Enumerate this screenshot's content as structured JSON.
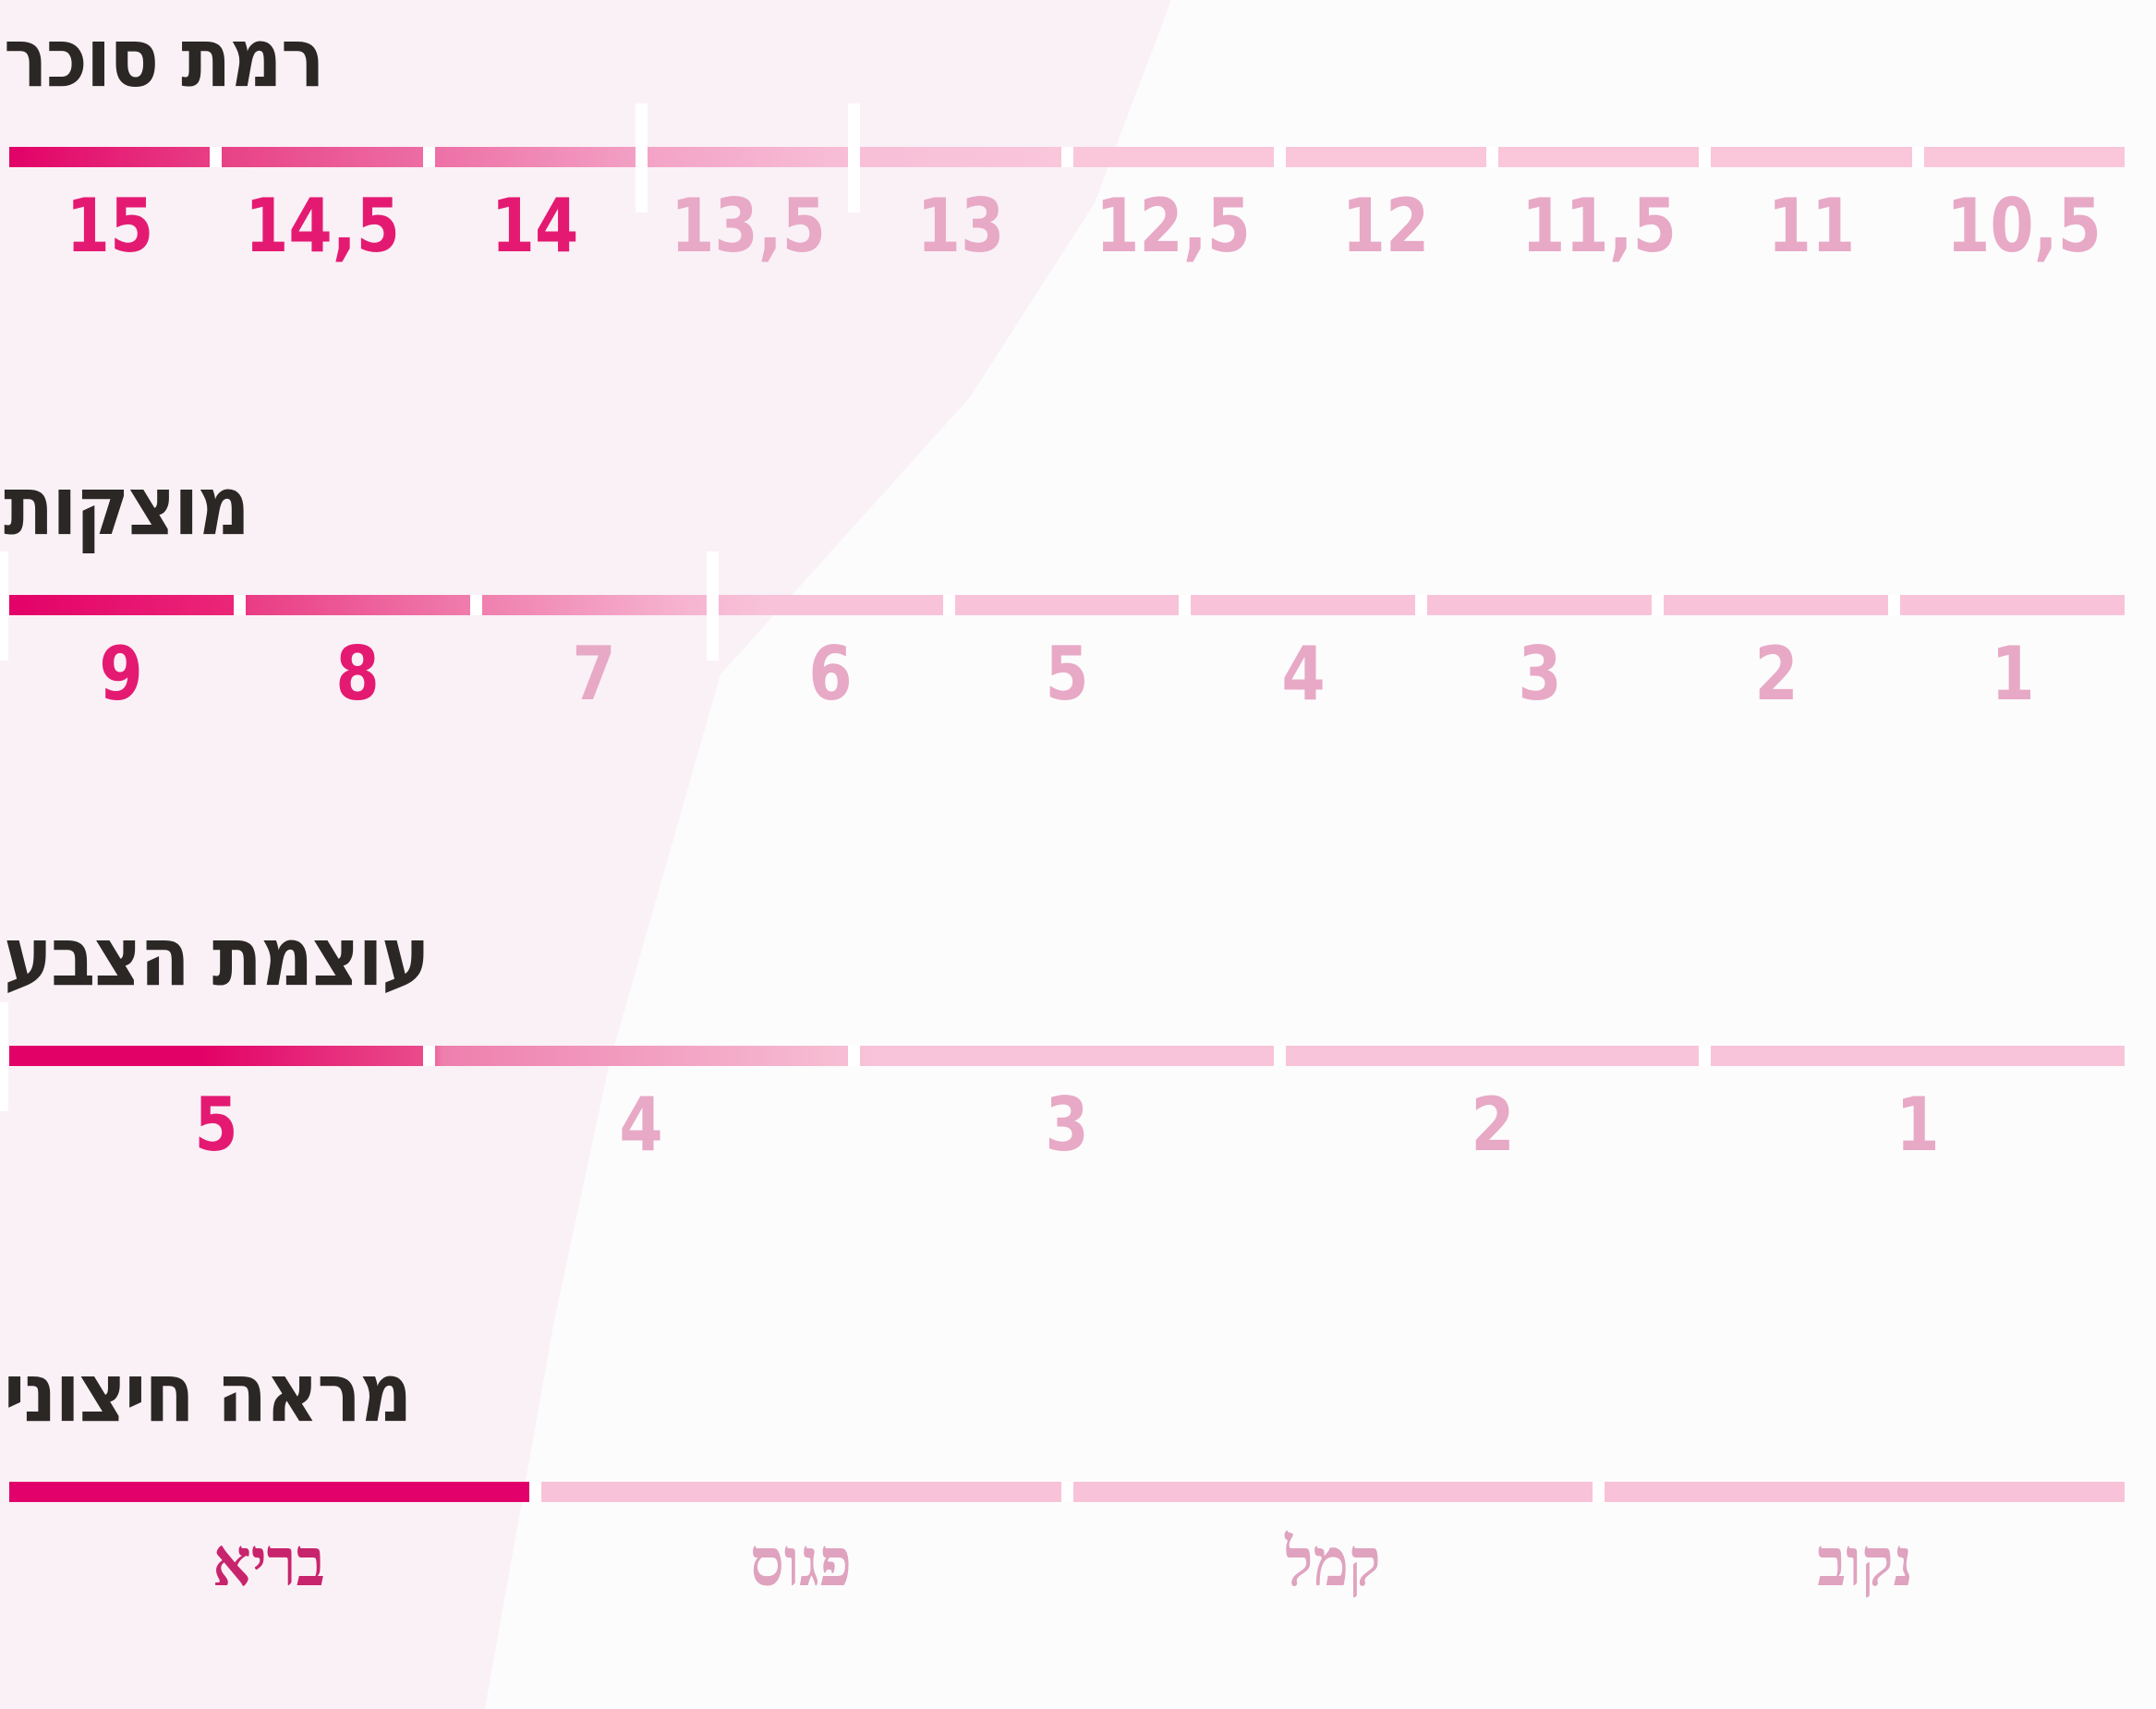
{
  "colors": {
    "background_right": "#fdfcfd",
    "background_left_wedge": "#faf1f6",
    "title_text": "#2b2725",
    "value_strong": "#e41a72",
    "value_muted": "#e7a9c6",
    "label_strong": "#c8246d",
    "label_muted": "#dfa3bf",
    "bar_deep": "#e20167",
    "bar_light": "#f9c6da",
    "gap_white": "#ffffff"
  },
  "rows": [
    {
      "name": "sugar-level",
      "title": "רמת סוכר",
      "values": [
        "15",
        "14,5",
        "14",
        "13,5",
        "13",
        "12,5",
        "12",
        "11,5",
        "11",
        "10,5"
      ],
      "strong_count": 3,
      "ticks": [
        3,
        4
      ],
      "serif_labels": false,
      "bar_gradient": "linear-gradient(90deg,#e20167 0%,#e84186 10%,#ed6fa5 20%,#f3a2c6 30%,#f8bfd7 40%,#f9c6da 50%,#f9c6da 100%)"
    },
    {
      "name": "firmness",
      "title": "מוצקות",
      "values": [
        "9",
        "8",
        "7",
        "6",
        "5",
        "4",
        "3",
        "2",
        "1"
      ],
      "strong_count": 2,
      "ticks": [
        0,
        3
      ],
      "serif_labels": false,
      "bar_gradient": "linear-gradient(90deg,#e30168 0%,#eb2678 10.6%,#ea3d85 11.4%,#ef78aa 21%,#f6b4d0 32%,#f8c3d9 36%,#f8c3d9 100%)"
    },
    {
      "name": "color-intensity",
      "title": "עוצמת הצבע",
      "values": [
        "5",
        "4",
        "3",
        "2",
        "1"
      ],
      "strong_count": 1,
      "ticks": [
        0
      ],
      "serif_labels": false,
      "bar_gradient": "linear-gradient(90deg,#e20167 0%,#e20167 9%,#ea4c8c 19.7%,#ee7fae 20.5%,#f6bcd2 39%,#f8c4d9 41%,#f8c4d9 100%)"
    },
    {
      "name": "external-appearance",
      "title": "מראה חיצוני",
      "values": [
        "בריא",
        "פגוס",
        "קמל",
        "נקוב"
      ],
      "strong_count": 1,
      "ticks": [],
      "serif_labels": true,
      "bar_gradient": "linear-gradient(90deg,#e2016b 0%,#e2016b 25.1%,#f8c3d8 25.1%,#f8c3d8 100%)"
    }
  ],
  "chart_data": [
    {
      "type": "bar",
      "title": "רמת סוכר",
      "categories": [
        "15",
        "14,5",
        "14",
        "13,5",
        "13",
        "12,5",
        "12",
        "11,5",
        "11",
        "10,5"
      ],
      "highlighted": [
        "15",
        "14,5",
        "14"
      ],
      "tick_marks_after_segment": [
        3,
        4
      ],
      "order": "descending-left-to-right",
      "legend_position": "none",
      "grid": false
    },
    {
      "type": "bar",
      "title": "מוצקות",
      "categories": [
        "9",
        "8",
        "7",
        "6",
        "5",
        "4",
        "3",
        "2",
        "1"
      ],
      "highlighted": [
        "9",
        "8"
      ],
      "tick_marks_after_segment": [
        0,
        3
      ],
      "order": "descending-left-to-right",
      "legend_position": "none",
      "grid": false
    },
    {
      "type": "bar",
      "title": "עוצמת הצבע",
      "categories": [
        "5",
        "4",
        "3",
        "2",
        "1"
      ],
      "highlighted": [
        "5"
      ],
      "tick_marks_after_segment": [
        0
      ],
      "order": "descending-left-to-right",
      "legend_position": "none",
      "grid": false
    },
    {
      "type": "bar",
      "title": "מראה חיצוני",
      "categories": [
        "בריא",
        "פגוס",
        "קמל",
        "נקוב"
      ],
      "highlighted": [
        "בריא"
      ],
      "tick_marks_after_segment": [],
      "order": "best-to-worst-left-to-right",
      "legend_position": "none",
      "grid": false
    }
  ]
}
